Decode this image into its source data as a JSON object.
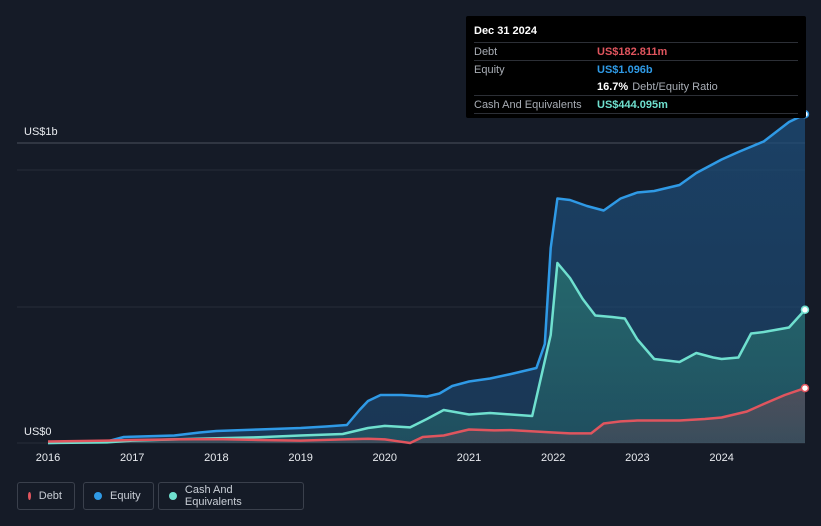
{
  "tooltip": {
    "date": "Dec 31 2024",
    "rows": [
      {
        "label": "Debt",
        "value": "US$182.811m",
        "color": "#e0555e"
      },
      {
        "label": "Equity",
        "value": "US$1.096b",
        "color": "#2f9ae6"
      },
      {
        "label": "",
        "value": "16.7%",
        "suffix": "Debt/Equity Ratio",
        "color": "#ffffff"
      },
      {
        "label": "Cash And Equivalents",
        "value": "US$444.095m",
        "color": "#6fe0cf"
      }
    ]
  },
  "legend": [
    {
      "label": "Debt",
      "color": "#e0555e"
    },
    {
      "label": "Equity",
      "color": "#2f9ae6"
    },
    {
      "label": "Cash And Equivalents",
      "color": "#6fe0cf"
    }
  ],
  "chart_data": {
    "type": "area",
    "ylabel_top": "US$1b",
    "ylabel_bottom": "US$0",
    "ylim": [
      0,
      1.1
    ],
    "xlim": [
      2016,
      2025
    ],
    "xticks": [
      "2016",
      "2017",
      "2018",
      "2019",
      "2020",
      "2021",
      "2022",
      "2023",
      "2024"
    ],
    "grid": true,
    "series": [
      {
        "name": "Equity",
        "color": "#2f9ae6",
        "x": [
          2016.0,
          2016.7,
          2016.9,
          2017.5,
          2017.8,
          2018.0,
          2018.5,
          2019.0,
          2019.3,
          2019.55,
          2019.7,
          2019.8,
          2019.95,
          2020.2,
          2020.5,
          2020.65,
          2020.8,
          2021.0,
          2021.25,
          2021.5,
          2021.8,
          2021.9,
          2021.97,
          2022.05,
          2022.2,
          2022.4,
          2022.6,
          2022.8,
          2023.0,
          2023.2,
          2023.5,
          2023.7,
          2023.9,
          2024.0,
          2024.2,
          2024.5,
          2024.8,
          2024.99
        ],
        "values": [
          0.0,
          0.005,
          0.02,
          0.025,
          0.035,
          0.04,
          0.045,
          0.05,
          0.055,
          0.06,
          0.11,
          0.14,
          0.16,
          0.16,
          0.155,
          0.165,
          0.19,
          0.205,
          0.215,
          0.23,
          0.25,
          0.33,
          0.65,
          0.815,
          0.81,
          0.79,
          0.775,
          0.815,
          0.835,
          0.84,
          0.86,
          0.9,
          0.93,
          0.945,
          0.97,
          1.005,
          1.07,
          1.096
        ]
      },
      {
        "name": "Cash And Equivalents",
        "color": "#6fe0cf",
        "x": [
          2016.0,
          2016.7,
          2017.0,
          2017.5,
          2018.0,
          2018.5,
          2019.0,
          2019.5,
          2019.8,
          2020.0,
          2020.3,
          2020.5,
          2020.7,
          2020.9,
          2021.0,
          2021.25,
          2021.5,
          2021.75,
          2021.97,
          2022.05,
          2022.2,
          2022.35,
          2022.5,
          2022.7,
          2022.85,
          2023.0,
          2023.2,
          2023.5,
          2023.7,
          2023.9,
          2024.0,
          2024.2,
          2024.35,
          2024.5,
          2024.8,
          2024.99
        ],
        "values": [
          0.0,
          0.002,
          0.008,
          0.012,
          0.016,
          0.019,
          0.025,
          0.03,
          0.05,
          0.057,
          0.052,
          0.08,
          0.11,
          0.1,
          0.095,
          0.1,
          0.095,
          0.09,
          0.36,
          0.6,
          0.55,
          0.48,
          0.425,
          0.42,
          0.415,
          0.345,
          0.28,
          0.27,
          0.3,
          0.285,
          0.28,
          0.285,
          0.365,
          0.37,
          0.385,
          0.444
        ]
      },
      {
        "name": "Debt",
        "color": "#e0555e",
        "x": [
          2016.0,
          2016.7,
          2017.0,
          2017.5,
          2018.0,
          2018.5,
          2019.0,
          2019.5,
          2019.8,
          2020.0,
          2020.15,
          2020.3,
          2020.45,
          2020.7,
          2021.0,
          2021.3,
          2021.5,
          2022.0,
          2022.2,
          2022.45,
          2022.6,
          2022.8,
          2023.0,
          2023.5,
          2023.8,
          2024.0,
          2024.3,
          2024.5,
          2024.75,
          2024.99
        ],
        "values": [
          0.005,
          0.008,
          0.01,
          0.012,
          0.013,
          0.01,
          0.008,
          0.012,
          0.014,
          0.012,
          0.006,
          0.0,
          0.02,
          0.025,
          0.045,
          0.042,
          0.043,
          0.035,
          0.032,
          0.032,
          0.065,
          0.072,
          0.075,
          0.075,
          0.08,
          0.085,
          0.105,
          0.13,
          0.16,
          0.183
        ]
      }
    ]
  }
}
